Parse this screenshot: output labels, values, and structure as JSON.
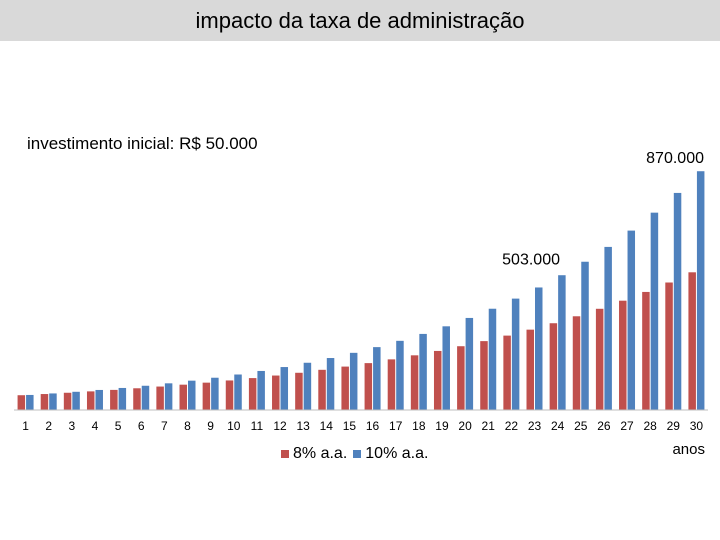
{
  "slide": {
    "title": "impacto da taxa de administração",
    "subtitle": "investimento inicial: R$ 50.000"
  },
  "chart_data": {
    "type": "bar",
    "title": "",
    "xlabel": "anos",
    "ylabel": "",
    "categories": [
      "1",
      "2",
      "3",
      "4",
      "5",
      "6",
      "7",
      "8",
      "9",
      "10",
      "11",
      "12",
      "13",
      "14",
      "15",
      "16",
      "17",
      "18",
      "19",
      "20",
      "21",
      "22",
      "23",
      "24",
      "25",
      "26",
      "27",
      "28",
      "29",
      "30"
    ],
    "series": [
      {
        "name": "8% a.a.",
        "color": "#c0504d",
        "values": [
          54000,
          58320,
          62986,
          68024,
          73466,
          79344,
          85691,
          92547,
          99950,
          107946,
          116582,
          125909,
          135981,
          146860,
          158608,
          171297,
          185001,
          199801,
          215785,
          233048,
          251692,
          271827,
          293573,
          317059,
          342424,
          369818,
          399403,
          431355,
          465864,
          503133
        ]
      },
      {
        "name": "10% a.a.",
        "color": "#4f81bd",
        "values": [
          55000,
          60500,
          66550,
          73205,
          80526,
          88578,
          97436,
          107179,
          117897,
          129687,
          142656,
          156921,
          172614,
          189875,
          208862,
          229749,
          252724,
          277996,
          305795,
          336375,
          370012,
          407014,
          447715,
          492487,
          541735,
          595909,
          655500,
          721050,
          793155,
          872470
        ]
      }
    ],
    "ylim": [
      0,
      950000
    ],
    "annotations": [
      {
        "text": "503.000",
        "series": 0,
        "category": "30"
      },
      {
        "text": "870.000",
        "series": 1,
        "category": "30"
      }
    ],
    "legend_position": "bottom",
    "grid": false
  }
}
